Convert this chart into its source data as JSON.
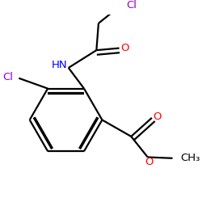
{
  "bg_color": "#ffffff",
  "atom_colors": {
    "C": "#000000",
    "N": "#0000ff",
    "O": "#ff0000",
    "Cl": "#9900cc"
  },
  "bond_lw": 1.6,
  "dbo": 0.018,
  "figsize": [
    2.5,
    2.5
  ],
  "dpi": 100,
  "xlim": [
    0.05,
    0.95
  ],
  "ylim": [
    0.05,
    0.95
  ],
  "font_size": 9.5
}
